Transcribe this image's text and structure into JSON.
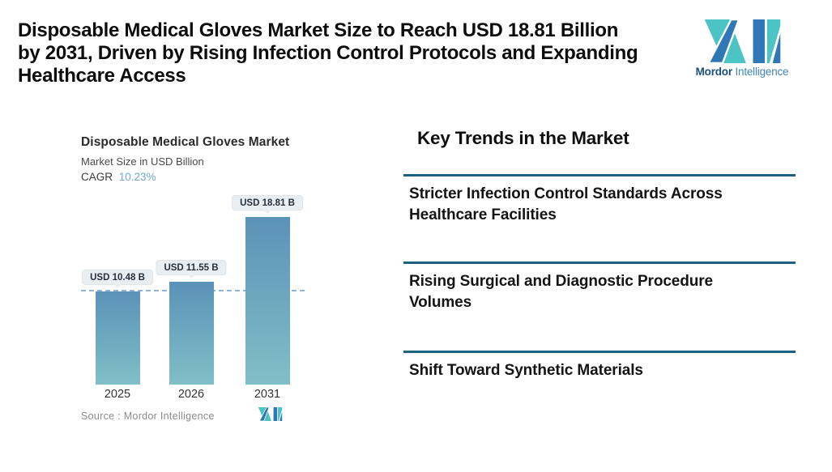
{
  "header": {
    "title_lines": [
      "Disposable Medical Gloves Market Size to Reach USD 18.81 Billion",
      "by 2031, Driven by Rising Infection Control Protocols and Expanding",
      "Healthcare Access"
    ],
    "brand": {
      "word1": "Mordor",
      "word2": "Intelligence"
    }
  },
  "chart_data": {
    "type": "bar",
    "title": "Disposable Medical Gloves Market",
    "subtitle": "Market Size in USD Billion",
    "cagr_label": "CAGR",
    "cagr_value": "10.23%",
    "categories": [
      "2025",
      "2026",
      "2031"
    ],
    "values": [
      10.48,
      11.55,
      18.81
    ],
    "value_labels": [
      "USD 10.48 B",
      "USD 11.55 B",
      "USD 18.81 B"
    ],
    "unit": "USD Billion",
    "reference_line": 10.48,
    "grid": false,
    "legend_position": "none",
    "source": "Source :  Mordor Intelligence"
  },
  "trends": {
    "heading": "Key Trends in the Market",
    "items": [
      "Stricter Infection Control Standards Across Healthcare Facilities",
      "Rising Surgical and Diagnostic Procedure Volumes",
      "Shift Toward Synthetic Materials"
    ]
  },
  "colors": {
    "accent_teal": "#4cc4c6",
    "accent_blue": "#2f78b5",
    "rule_blue": "#1e6080",
    "bar_gradient_top": "#5b92b8",
    "bar_gradient_bottom": "#80bfc7",
    "dashed_line": "#90b4d3",
    "cagr_value_color": "#74a9d8",
    "callout_bg": "#e9eef2"
  },
  "icons": {
    "brand_mark": "mordor-intelligence-logo"
  }
}
